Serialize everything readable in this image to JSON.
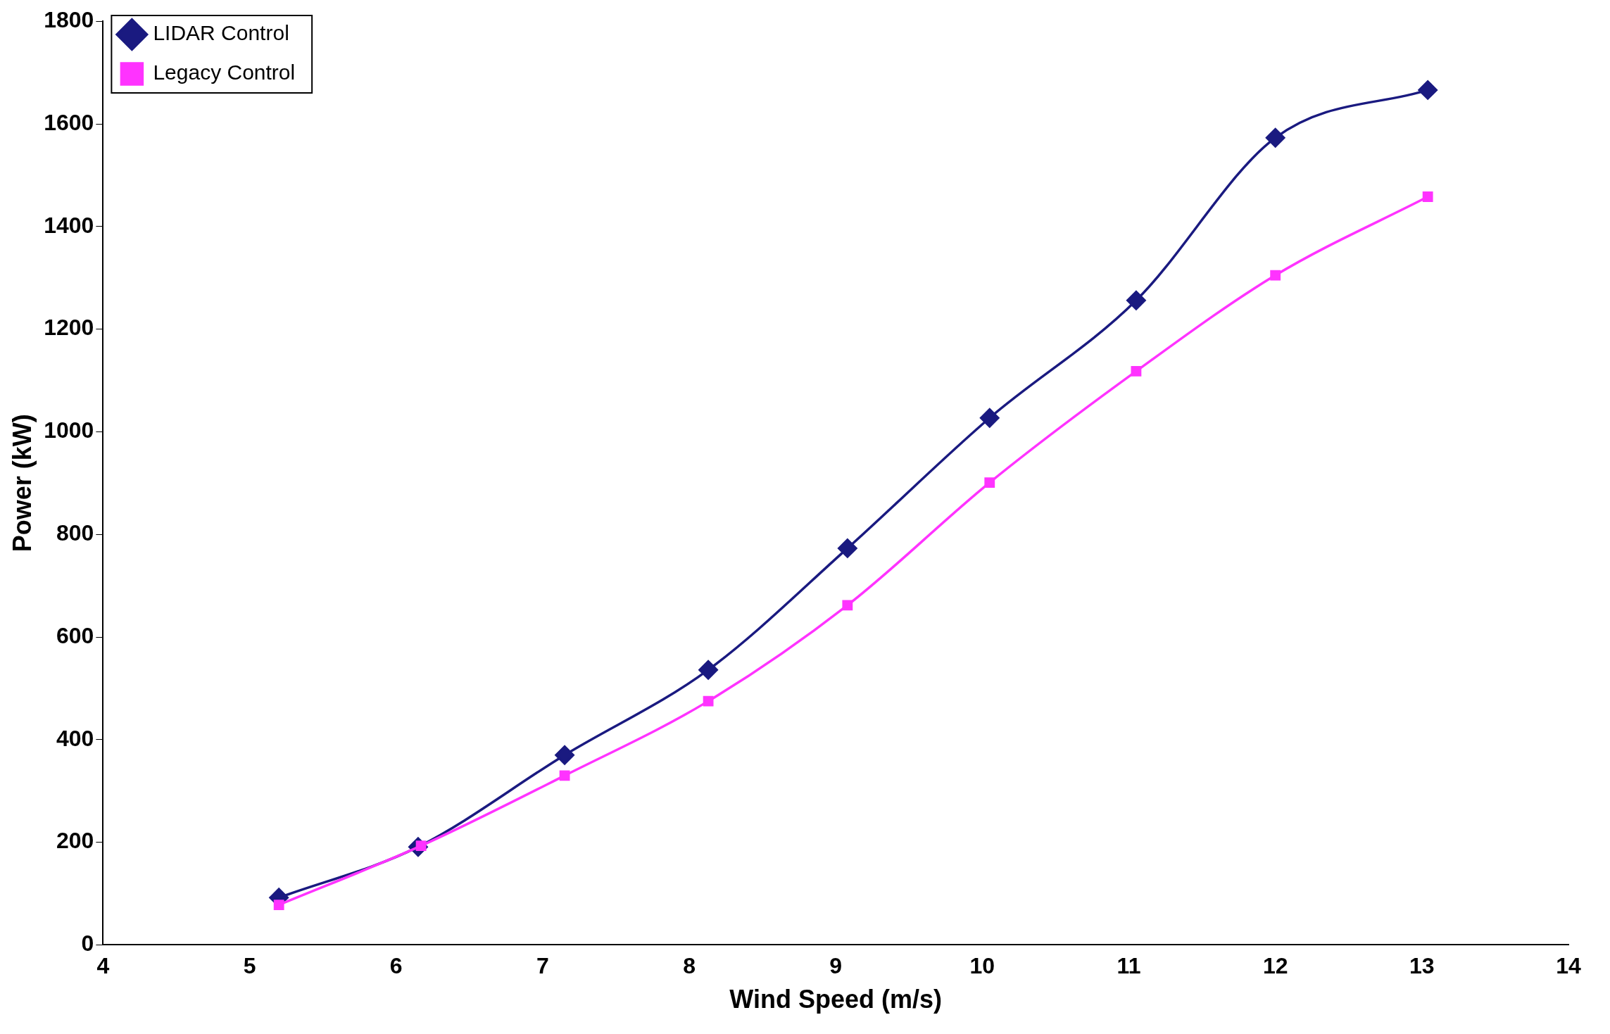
{
  "chart_data": {
    "type": "line",
    "xlabel": "Wind Speed (m/s)",
    "ylabel": "Power (kW)",
    "xlim": [
      4,
      14
    ],
    "xticks": [
      4,
      5,
      6,
      7,
      8,
      9,
      10,
      11,
      12,
      13,
      14
    ],
    "ylim": [
      0,
      1800
    ],
    "yticks": [
      0,
      200,
      400,
      600,
      800,
      1000,
      1200,
      1400,
      1600,
      1800
    ],
    "grid": false,
    "legend": "top left",
    "line_style": "solid",
    "series": [
      {
        "name": "LIDAR Control",
        "color": "#1a1a80",
        "marker": "diamond",
        "x": [
          5.2,
          6.15,
          7.15,
          8.13,
          9.08,
          10.05,
          11.05,
          12.0,
          13.04
        ],
        "values": [
          92,
          191,
          370,
          536,
          773,
          1027,
          1256,
          1573,
          1666
        ]
      },
      {
        "name": "Legacy Control",
        "color": "#ff33ff",
        "marker": "square",
        "x": [
          5.2,
          6.17,
          7.15,
          8.13,
          9.08,
          10.05,
          11.05,
          12.0,
          13.04
        ],
        "values": [
          78,
          193,
          330,
          475,
          662,
          901,
          1118,
          1305,
          1458
        ]
      }
    ]
  }
}
